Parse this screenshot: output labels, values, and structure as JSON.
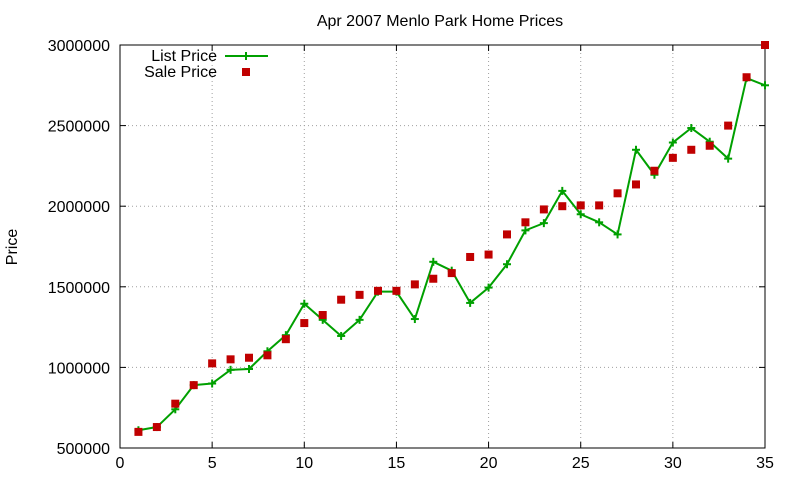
{
  "chart_data": {
    "type": "line",
    "title": "Apr 2007 Menlo Park Home Prices",
    "xlabel": "",
    "ylabel": "Price",
    "xlim": [
      0,
      35
    ],
    "ylim": [
      500000,
      3000000
    ],
    "xticks": [
      0,
      5,
      10,
      15,
      20,
      25,
      30,
      35
    ],
    "yticks": [
      500000,
      1000000,
      1500000,
      2000000,
      2500000,
      3000000
    ],
    "grid": true,
    "legend_position": "top-left",
    "x": [
      1,
      2,
      3,
      4,
      5,
      6,
      7,
      8,
      9,
      10,
      11,
      12,
      13,
      14,
      15,
      16,
      17,
      18,
      19,
      20,
      21,
      22,
      23,
      24,
      25,
      26,
      27,
      28,
      29,
      30,
      31,
      32,
      33,
      34,
      35
    ],
    "series": [
      {
        "name": "List Price",
        "style": "line+cross",
        "color": "#00a000",
        "values": [
          610000,
          630000,
          740000,
          890000,
          900000,
          985000,
          990000,
          1100000,
          1200000,
          1395000,
          1295000,
          1195000,
          1295000,
          1470000,
          1470000,
          1300000,
          1655000,
          1600000,
          1400000,
          1495000,
          1640000,
          1850000,
          1895000,
          2095000,
          1950000,
          1900000,
          1825000,
          2350000,
          2195000,
          2395000,
          2485000,
          2400000,
          2295000,
          2795000,
          2750000
        ]
      },
      {
        "name": "Sale Price",
        "style": "square",
        "color": "#c00000",
        "values": [
          600000,
          630000,
          775000,
          890000,
          1025000,
          1050000,
          1060000,
          1075000,
          1175000,
          1275000,
          1325000,
          1420000,
          1450000,
          1475000,
          1475000,
          1515000,
          1550000,
          1585000,
          1685000,
          1700000,
          1825000,
          1900000,
          1980000,
          2000000,
          2005000,
          2005000,
          2080000,
          2135000,
          2220000,
          2300000,
          2350000,
          2375000,
          2500000,
          2800000,
          3000000
        ]
      }
    ]
  }
}
